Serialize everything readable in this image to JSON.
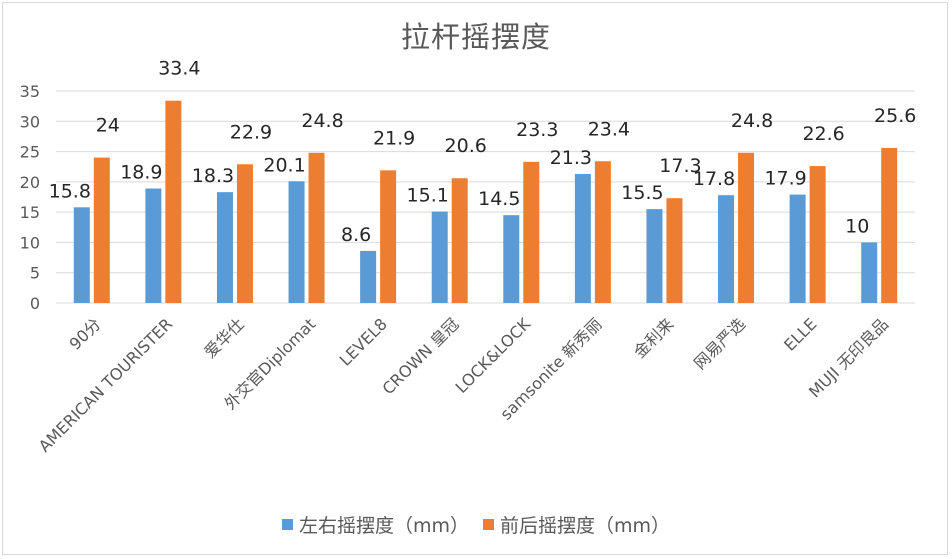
{
  "chart_data": {
    "type": "bar",
    "title": "拉杆摇摆度",
    "xlabel": "",
    "ylabel": "",
    "ylim": [
      0,
      35
    ],
    "yticks": [
      0,
      5,
      10,
      15,
      20,
      25,
      30,
      35
    ],
    "grid": true,
    "legend_position": "bottom",
    "categories": [
      "90分",
      "AMERICAN  TOURISTER",
      "爱华仕",
      "外交官Diplomat",
      "LEVEL8",
      "CROWN 皇冠",
      "LOCK&LOCK",
      "samsonite 新秀丽",
      "金利来",
      "网易严选",
      "ELLE",
      "MUJI 无印良品"
    ],
    "series": [
      {
        "name": "左右摇摆度（mm）",
        "color": "#5b9bd5",
        "values": [
          15.8,
          18.9,
          18.3,
          20.1,
          8.6,
          15.1,
          14.5,
          21.3,
          15.5,
          17.8,
          17.9,
          10
        ]
      },
      {
        "name": "前后摇摆度（mm）",
        "color": "#ed7d31",
        "values": [
          24,
          33.4,
          22.9,
          24.8,
          21.9,
          20.6,
          23.3,
          23.4,
          17.3,
          24.8,
          22.6,
          25.6
        ]
      }
    ],
    "data_labels": true
  },
  "colors": {
    "grid": "#d9d9d9",
    "axis_text": "#595959",
    "label_text": "#262626"
  }
}
